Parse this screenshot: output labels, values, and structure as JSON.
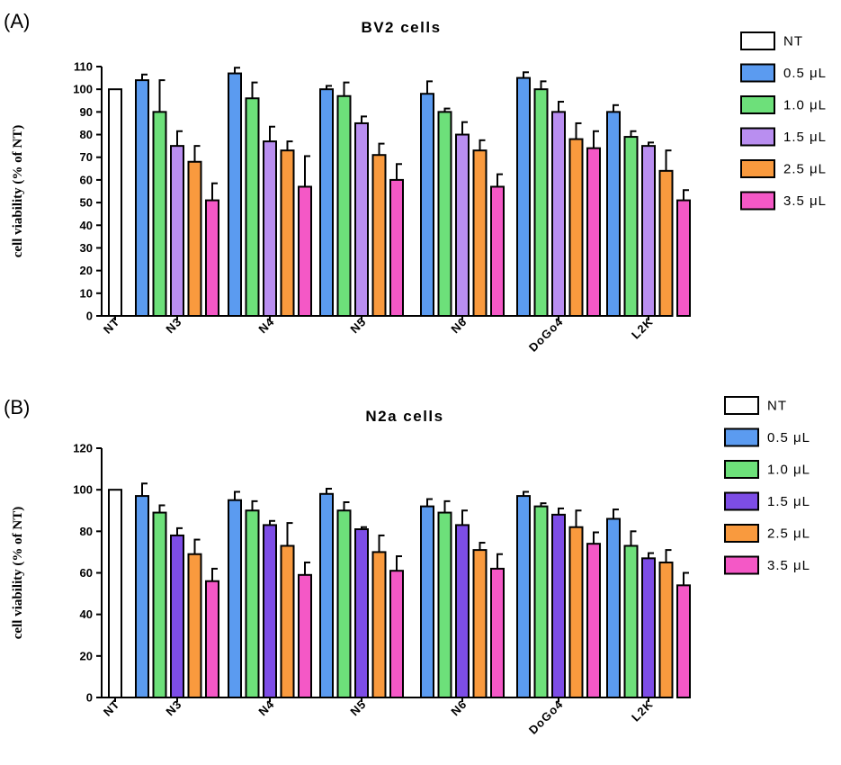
{
  "chart_data": [
    {
      "type": "bar",
      "panel_label": "(A)",
      "title": "BV2 cells",
      "ylabel": "cell viability (% of NT)",
      "xlabel": "",
      "ylim": [
        0,
        110
      ],
      "yticks": [
        0,
        10,
        20,
        30,
        40,
        50,
        60,
        70,
        80,
        90,
        100,
        110
      ],
      "grid": false,
      "legend_position": "right",
      "categories": [
        "NT",
        "N3",
        "N4",
        "N5",
        "N6",
        "DoGo4",
        "L2K"
      ],
      "series": [
        {
          "name": "NT",
          "color": "#ffffff",
          "values": [
            100,
            null,
            null,
            null,
            null,
            null,
            null
          ],
          "errors": [
            0,
            null,
            null,
            null,
            null,
            null,
            null
          ]
        },
        {
          "name": "0.5 μL",
          "color": "#5b9bf0",
          "values": [
            null,
            104,
            107,
            100,
            98,
            105,
            90
          ],
          "errors": [
            null,
            2.5,
            2.5,
            1.5,
            5.5,
            2.5,
            3
          ]
        },
        {
          "name": "1.0 μL",
          "color": "#6de07a",
          "values": [
            null,
            90,
            96,
            97,
            90,
            100,
            79
          ],
          "errors": [
            null,
            14,
            7,
            6,
            1.5,
            3.5,
            2.5
          ]
        },
        {
          "name": "1.5 μL",
          "color": "#b98ef0",
          "values": [
            null,
            75,
            77,
            85,
            80,
            90,
            75
          ],
          "errors": [
            null,
            6.5,
            6.5,
            3,
            5.5,
            4.5,
            1.5
          ]
        },
        {
          "name": "2.5 μL",
          "color": "#f99a3e",
          "values": [
            null,
            68,
            73,
            71,
            73,
            78,
            64
          ],
          "errors": [
            null,
            7,
            4,
            5,
            4.5,
            7,
            9
          ]
        },
        {
          "name": "3.5 μL",
          "color": "#f458c6",
          "values": [
            null,
            51,
            57,
            60,
            57,
            74,
            51
          ],
          "errors": [
            null,
            7.5,
            13.5,
            7,
            5.5,
            7.5,
            4.5
          ]
        }
      ]
    },
    {
      "type": "bar",
      "panel_label": "(B)",
      "title": "N2a cells",
      "ylabel": "cell viability (% of NT)",
      "xlabel": "",
      "ylim": [
        0,
        120
      ],
      "yticks": [
        0,
        20,
        40,
        60,
        80,
        100,
        120
      ],
      "grid": false,
      "legend_position": "right",
      "categories": [
        "NT",
        "N3",
        "N4",
        "N5",
        "N6",
        "DoGo4",
        "L2K"
      ],
      "series": [
        {
          "name": "NT",
          "color": "#ffffff",
          "values": [
            100,
            null,
            null,
            null,
            null,
            null,
            null
          ],
          "errors": [
            0,
            null,
            null,
            null,
            null,
            null,
            null
          ]
        },
        {
          "name": "0.5 μL",
          "color": "#5b9bf0",
          "values": [
            null,
            97,
            95,
            98,
            92,
            97,
            86
          ],
          "errors": [
            null,
            6,
            4,
            2.5,
            3.5,
            2,
            4.5
          ]
        },
        {
          "name": "1.0 μL",
          "color": "#6de07a",
          "values": [
            null,
            89,
            90,
            90,
            89,
            92,
            73
          ],
          "errors": [
            null,
            3.5,
            4.5,
            4,
            5.5,
            1.5,
            7
          ]
        },
        {
          "name": "1.5 μL",
          "color": "#7d4de6",
          "values": [
            null,
            78,
            83,
            81,
            83,
            88,
            67
          ],
          "errors": [
            null,
            3.5,
            2,
            1,
            7,
            3,
            2.5
          ]
        },
        {
          "name": "2.5 μL",
          "color": "#f99a3e",
          "values": [
            null,
            69,
            73,
            70,
            71,
            82,
            65
          ],
          "errors": [
            null,
            7,
            11,
            8,
            3.5,
            8,
            6
          ]
        },
        {
          "name": "3.5 μL",
          "color": "#f458c6",
          "values": [
            null,
            56,
            59,
            61,
            62,
            74,
            54
          ],
          "errors": [
            null,
            6,
            6,
            7,
            7,
            5.5,
            6
          ]
        }
      ]
    }
  ]
}
